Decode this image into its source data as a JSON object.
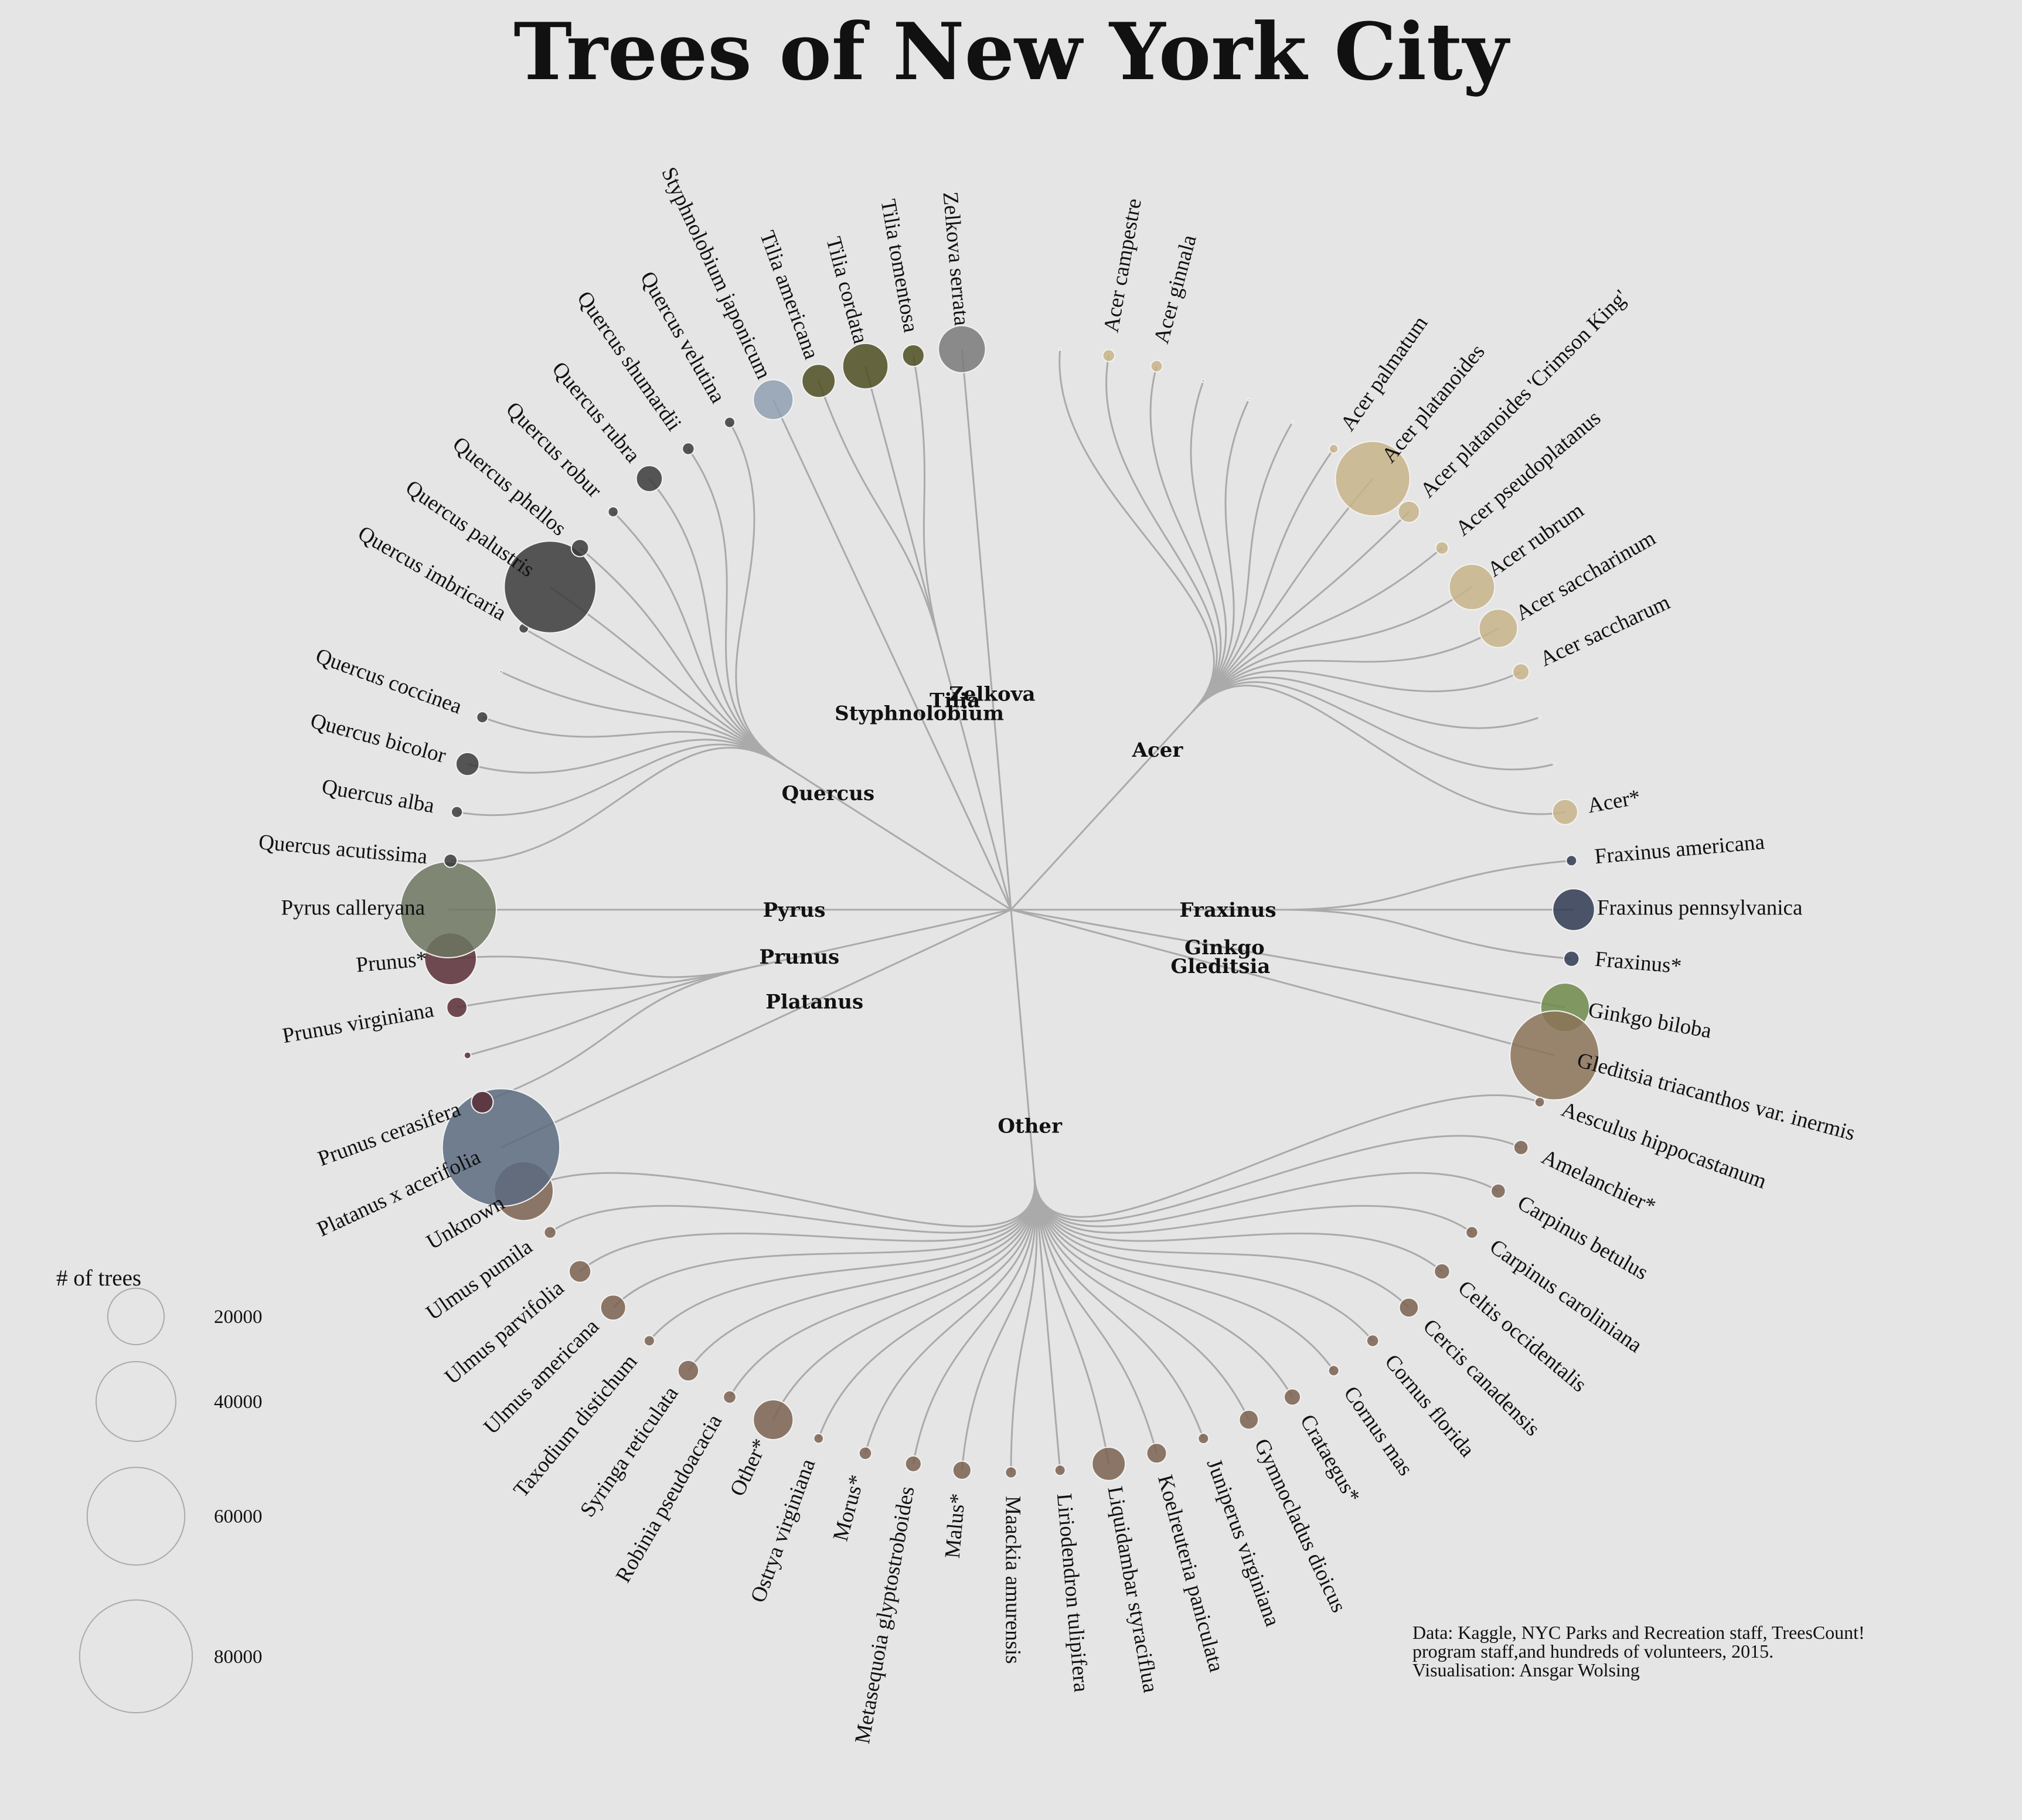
{
  "title": "Trees of New York City",
  "legend": {
    "title": "# of trees",
    "values": [
      20000,
      40000,
      60000,
      80000
    ],
    "labels": [
      "20000",
      "40000",
      "60000",
      "80000"
    ]
  },
  "source": [
    "Data: Kaggle, NYC Parks and Recreation staff, TreesCount!",
    "program staff,and hundreds of volunteers, 2015.",
    "Visualisation: Ansgar Wolsing"
  ],
  "chart_data": {
    "type": "radial-dendrogram",
    "size_unit": "# of trees",
    "genera": [
      {
        "genus": "Acer",
        "color": "#c8b48a",
        "species": [
          {
            "name": "",
            "trees": 30
          },
          {
            "name": "Acer campestre",
            "trees": 900
          },
          {
            "name": "Acer ginnala",
            "trees": 850
          },
          {
            "name": "",
            "trees": 60
          },
          {
            "name": "",
            "trees": 30
          },
          {
            "name": "",
            "trees": 20
          },
          {
            "name": "Acer palmatum",
            "trees": 500
          },
          {
            "name": "Acer platanoides",
            "trees": 35000
          },
          {
            "name": "Acer platanoides 'Crimson King'",
            "trees": 2900
          },
          {
            "name": "Acer pseudoplatanus",
            "trees": 1000
          },
          {
            "name": "Acer rubrum",
            "trees": 13000
          },
          {
            "name": "Acer saccharinum",
            "trees": 9300
          },
          {
            "name": "Acer saccharum",
            "trees": 1700
          },
          {
            "name": "",
            "trees": 30
          },
          {
            "name": "",
            "trees": 15
          },
          {
            "name": "Acer*",
            "trees": 4000
          }
        ]
      },
      {
        "genus": "Fraxinus",
        "color": "#2f3a52",
        "species": [
          {
            "name": "Fraxinus americana",
            "trees": 700
          },
          {
            "name": "Fraxinus pennsylvanica",
            "trees": 11000
          },
          {
            "name": "Fraxinus*",
            "trees": 1500
          }
        ]
      },
      {
        "genus": "Ginkgo",
        "color": "#6e8a4a",
        "species": [
          {
            "name": "Ginkgo biloba",
            "trees": 15000
          }
        ]
      },
      {
        "genus": "Gleditsia",
        "color": "#8b7358",
        "species": [
          {
            "name": "Gleditsia triacanthos var. inermis",
            "trees": 50000
          }
        ]
      },
      {
        "genus": "Other",
        "color": "#7b6250",
        "species": [
          {
            "name": "Aesculus hippocastanum",
            "trees": 600
          },
          {
            "name": "Amelanchier*",
            "trees": 1300
          },
          {
            "name": "Carpinus betulus",
            "trees": 1300
          },
          {
            "name": "Carpinus caroliniana",
            "trees": 900
          },
          {
            "name": "Celtis occidentalis",
            "trees": 1500
          },
          {
            "name": "Cercis canadensis",
            "trees": 2300
          },
          {
            "name": "Cornus florida",
            "trees": 900
          },
          {
            "name": "Cornus mas",
            "trees": 700
          },
          {
            "name": "Crataegus*",
            "trees": 1700
          },
          {
            "name": "Gymnocladus dioicus",
            "trees": 2300
          },
          {
            "name": "Juniperus virginiana",
            "trees": 700
          },
          {
            "name": "Koelreuteria paniculata",
            "trees": 2500
          },
          {
            "name": "Liquidambar styraciflua",
            "trees": 7000
          },
          {
            "name": "Liriodendron tulipifera",
            "trees": 700
          },
          {
            "name": "Maackia amurensis",
            "trees": 800
          },
          {
            "name": "Malus*",
            "trees": 2100
          },
          {
            "name": "Metasequoia glyptostroboides",
            "trees": 1600
          },
          {
            "name": "Morus*",
            "trees": 1000
          },
          {
            "name": "Ostrya virginiana",
            "trees": 600
          },
          {
            "name": "Other*",
            "trees": 10000
          },
          {
            "name": "Robinia pseudoacacia",
            "trees": 1000
          },
          {
            "name": "Syringa reticulata",
            "trees": 2700
          },
          {
            "name": "Taxodium distichum",
            "trees": 700
          },
          {
            "name": "Ulmus americana",
            "trees": 4000
          },
          {
            "name": "Ulmus parvifolia",
            "trees": 3000
          },
          {
            "name": "Ulmus pumila",
            "trees": 900
          },
          {
            "name": "Unknown",
            "trees": 22000
          }
        ]
      },
      {
        "genus": "Platanus",
        "color": "#5a6b80",
        "species": [
          {
            "name": "Platanus x acerifolia",
            "trees": 87000
          }
        ]
      },
      {
        "genus": "Prunus",
        "color": "#5a2e36",
        "species": [
          {
            "name": "Prunus cerasifera",
            "trees": 3000
          },
          {
            "name": "",
            "trees": 300
          },
          {
            "name": "Prunus virginiana",
            "trees": 2600
          },
          {
            "name": "Prunus*",
            "trees": 17000
          }
        ]
      },
      {
        "genus": "Pyrus",
        "color": "#6d7560",
        "species": [
          {
            "name": "Pyrus calleryana",
            "trees": 58000
          }
        ]
      },
      {
        "genus": "Quercus",
        "color": "#3b3b3b",
        "species": [
          {
            "name": "Quercus acutissima",
            "trees": 1100
          },
          {
            "name": "Quercus alba",
            "trees": 800
          },
          {
            "name": "Quercus bicolor",
            "trees": 3400
          },
          {
            "name": "Quercus coccinea",
            "trees": 800
          },
          {
            "name": "",
            "trees": 10
          },
          {
            "name": "Quercus imbricaria",
            "trees": 600
          },
          {
            "name": "Quercus palustris",
            "trees": 53000
          },
          {
            "name": "Quercus phellos",
            "trees": 1900
          },
          {
            "name": "Quercus robur",
            "trees": 650
          },
          {
            "name": "Quercus rubra",
            "trees": 4300
          },
          {
            "name": "Quercus shumardii",
            "trees": 900
          },
          {
            "name": "Quercus velutina",
            "trees": 700
          }
        ]
      },
      {
        "genus": "Styphnolobium",
        "color": "#8fa0b2",
        "species": [
          {
            "name": "Styphnolobium japonicum",
            "trees": 10000
          }
        ]
      },
      {
        "genus": "Tilia",
        "color": "#4d4f22",
        "species": [
          {
            "name": "Tilia americana",
            "trees": 7000
          },
          {
            "name": "Tilia cordata",
            "trees": 13000
          },
          {
            "name": "Tilia tomentosa",
            "trees": 3000
          }
        ]
      },
      {
        "genus": "Zelkova",
        "color": "#7a7a7a",
        "species": [
          {
            "name": "Zelkova serrata",
            "trees": 14000
          }
        ]
      }
    ]
  }
}
